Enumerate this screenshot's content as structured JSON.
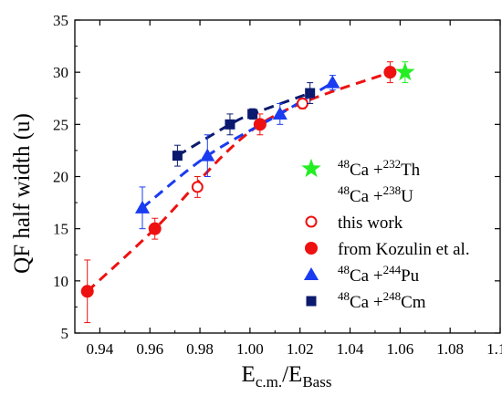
{
  "chart_data": {
    "type": "scatter",
    "xlabel": {
      "main": "E",
      "sub1": "c.m.",
      "mid": "/E",
      "sub2": "Bass"
    },
    "ylabel": "QF half width (u)",
    "xlim": [
      0.93,
      1.1
    ],
    "ylim": [
      5,
      35
    ],
    "xticks": [
      "0.94",
      "0.96",
      "0.98",
      "1.00",
      "1.02",
      "1.04",
      "1.06",
      "1.08",
      "1.10"
    ],
    "yticks": [
      "5",
      "10",
      "15",
      "20",
      "25",
      "30",
      "35"
    ],
    "grid": false,
    "legend_position": "bottom-right",
    "colors": {
      "red": "#ee1111",
      "blue": "#1a3cf0",
      "navy": "#0b1a6e",
      "green": "#22ee22"
    },
    "series": [
      {
        "key": "th232",
        "legend": {
          "pre": "48",
          "mid": "Ca +",
          "sup": "232",
          "post": "Th"
        },
        "marker": "star",
        "color": "#22ee22",
        "dashed_fit": false,
        "points": [
          {
            "x": 1.062,
            "y": 30.0,
            "err": 1.0
          }
        ]
      },
      {
        "key": "u238",
        "legend": {
          "pre": "48",
          "mid": "Ca +",
          "sup": "238",
          "post": "U"
        },
        "marker": "none",
        "color": "#000000",
        "dashed_fit": false,
        "points": []
      },
      {
        "key": "this-work",
        "legend": {
          "text": "this work"
        },
        "marker": "circle-open",
        "color": "#ee1111",
        "dashed_fit": false,
        "points": [
          {
            "x": 0.979,
            "y": 19.0,
            "err": 1.0
          },
          {
            "x": 1.021,
            "y": 27.0,
            "err": 0.5
          }
        ]
      },
      {
        "key": "kozulin",
        "legend": {
          "text": "from Kozulin et al."
        },
        "marker": "circle",
        "color": "#ee1111",
        "dashed_fit": true,
        "points": [
          {
            "x": 0.935,
            "y": 9.0,
            "err": 3.0
          },
          {
            "x": 0.962,
            "y": 15.0,
            "err": 1.0
          },
          {
            "x": 1.004,
            "y": 25.0,
            "err": 1.0
          },
          {
            "x": 1.056,
            "y": 30.0,
            "err": 1.0
          }
        ]
      },
      {
        "key": "pu244",
        "legend": {
          "pre": "48",
          "mid": "Ca +",
          "sup": "244",
          "post": "Pu"
        },
        "marker": "triangle",
        "color": "#1a3cf0",
        "dashed_fit": true,
        "points": [
          {
            "x": 0.957,
            "y": 17.0,
            "err": 2.0
          },
          {
            "x": 0.983,
            "y": 22.0,
            "err": 2.0
          },
          {
            "x": 1.012,
            "y": 26.0,
            "err": 1.0
          },
          {
            "x": 1.033,
            "y": 29.0,
            "err": 0.7
          }
        ]
      },
      {
        "key": "cm248",
        "legend": {
          "pre": "48",
          "mid": "Ca +",
          "sup": "248",
          "post": "Cm"
        },
        "marker": "square",
        "color": "#0b1a6e",
        "dashed_fit": true,
        "points": [
          {
            "x": 0.971,
            "y": 22.0,
            "err": 1.0
          },
          {
            "x": 0.992,
            "y": 25.0,
            "err": 1.0
          },
          {
            "x": 1.001,
            "y": 26.0,
            "err": 0.5
          },
          {
            "x": 1.024,
            "y": 28.0,
            "err": 1.0
          }
        ]
      }
    ]
  }
}
